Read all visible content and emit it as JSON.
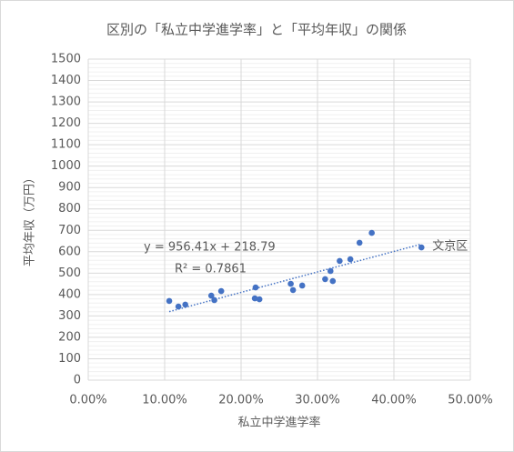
{
  "chart_data": {
    "type": "scatter",
    "title": "区別の「私立中学進学率」と「平均年収」の関係",
    "x_label": "私立中学進学率",
    "y_label": "平均年収（万円）",
    "color": "#4472c4",
    "grid": true,
    "x": [
      0.106,
      0.118,
      0.127,
      0.161,
      0.165,
      0.174,
      0.219,
      0.218,
      0.224,
      0.265,
      0.268,
      0.28,
      0.31,
      0.317,
      0.32,
      0.329,
      0.343,
      0.355,
      0.371,
      0.436
    ],
    "values": [
      370,
      344,
      353,
      395,
      374,
      416,
      433,
      382,
      378,
      450,
      421,
      442,
      472,
      510,
      463,
      557,
      565,
      642,
      688,
      620
    ],
    "point_labels": [
      null,
      null,
      null,
      null,
      null,
      null,
      null,
      null,
      null,
      null,
      null,
      null,
      null,
      null,
      null,
      null,
      null,
      null,
      null,
      "文京区"
    ],
    "trendline": {
      "slope": 956.41,
      "intercept": 218.79,
      "equation": "y = 956.41x + 218.79",
      "r2": "R² = 0.7861"
    },
    "xlim": [
      0,
      0.5
    ],
    "xticks": [
      {
        "value": 0,
        "label": "0.00%"
      },
      {
        "value": 0.1,
        "label": "10.00%"
      },
      {
        "value": 0.2,
        "label": "20.00%"
      },
      {
        "value": 0.3,
        "label": "30.00%"
      },
      {
        "value": 0.4,
        "label": "40.00%"
      },
      {
        "value": 0.5,
        "label": "50.00%"
      }
    ],
    "ylim": [
      0,
      1500
    ],
    "yticks": [
      0,
      100,
      200,
      300,
      400,
      500,
      600,
      700,
      800,
      900,
      1000,
      1100,
      1200,
      1300,
      1400,
      1500
    ]
  }
}
